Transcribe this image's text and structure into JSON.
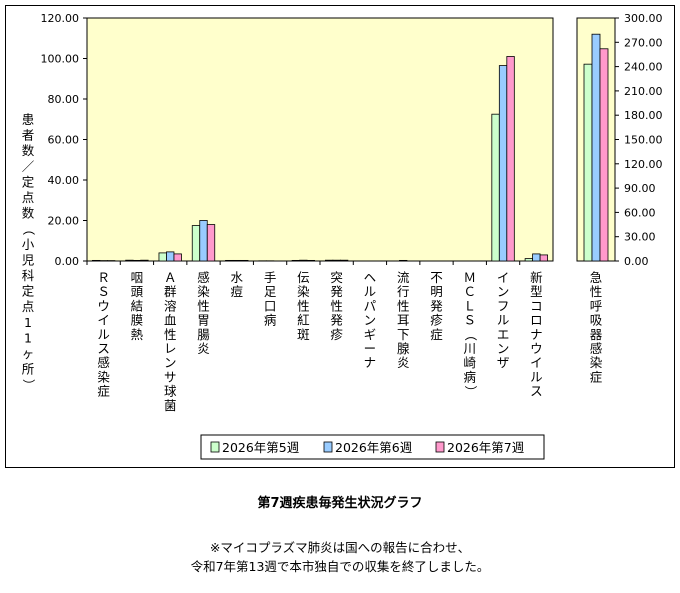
{
  "caption": {
    "title": "第7週疾患毎発生状況グラフ",
    "note_line1": "※マイコプラズマ肺炎は国への報告に合わせ、",
    "note_line2": "令和7年第13週で本市独自での収集を終了しました。"
  },
  "chart_data": [
    {
      "type": "bar",
      "ylabel": "患者数／定点数（小児科定点11ヶ所）",
      "ylim": [
        0,
        120
      ],
      "yticks": [
        "0.00",
        "20.00",
        "40.00",
        "60.00",
        "80.00",
        "100.00",
        "120.00"
      ],
      "categories": [
        "ＲＳウイルス感染症",
        "咽頭結膜熱",
        "Ａ群溶血性レンサ球菌",
        "感染性胃腸炎",
        "水痘",
        "手足口病",
        "伝染性紅斑",
        "突発性発疹",
        "ヘルパンギーナ",
        "流行性耳下腺炎",
        "不明発疹症",
        "ＭＣＬＳ（川崎病）",
        "インフルエンザ",
        "新型コロナウイルス"
      ],
      "series": [
        {
          "name": "2026年第5週",
          "color": "#ccffcc",
          "values": [
            0.3,
            0.4,
            4.0,
            17.5,
            0.3,
            0.1,
            0.3,
            0.4,
            0.0,
            0.0,
            0.0,
            0.0,
            72.5,
            1.2
          ]
        },
        {
          "name": "2026年第6週",
          "color": "#99ccff",
          "values": [
            0.2,
            0.3,
            4.5,
            20.0,
            0.3,
            0.1,
            0.4,
            0.4,
            0.0,
            0.3,
            0.0,
            0.0,
            96.5,
            3.5
          ]
        },
        {
          "name": "2026年第7週",
          "color": "#ff99cc",
          "values": [
            0.2,
            0.4,
            3.5,
            18.0,
            0.3,
            0.0,
            0.3,
            0.4,
            0.0,
            0.0,
            0.0,
            0.0,
            101.0,
            3.0
          ]
        }
      ],
      "grid": false,
      "legend": "bottom"
    },
    {
      "type": "bar",
      "ylim": [
        0,
        300
      ],
      "yticks": [
        "0.00",
        "30.00",
        "60.00",
        "90.00",
        "120.00",
        "150.00",
        "180.00",
        "210.00",
        "240.00",
        "270.00",
        "300.00"
      ],
      "categories": [
        "急性呼吸器感染症"
      ],
      "series": [
        {
          "name": "2026年第5週",
          "color": "#ccffcc",
          "values": [
            243
          ]
        },
        {
          "name": "2026年第6週",
          "color": "#99ccff",
          "values": [
            280
          ]
        },
        {
          "name": "2026年第7週",
          "color": "#ff99cc",
          "values": [
            262
          ]
        }
      ]
    }
  ]
}
